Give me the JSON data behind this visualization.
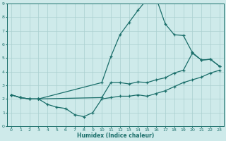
{
  "xlabel": "Humidex (Indice chaleur)",
  "xlim": [
    -0.5,
    23.5
  ],
  "ylim": [
    0,
    9
  ],
  "xticks": [
    0,
    1,
    2,
    3,
    4,
    5,
    6,
    7,
    8,
    9,
    10,
    11,
    12,
    13,
    14,
    15,
    16,
    17,
    18,
    19,
    20,
    21,
    22,
    23
  ],
  "yticks": [
    0,
    1,
    2,
    3,
    4,
    5,
    6,
    7,
    8,
    9
  ],
  "bg_color": "#ceeaea",
  "line_color": "#1a6e6a",
  "grid_color": "#aacfcf",
  "curve1_x": [
    0,
    1,
    2,
    3,
    4,
    5,
    6,
    7,
    8,
    9,
    10,
    11,
    12,
    13,
    14,
    15,
    16,
    17,
    18,
    19,
    20,
    21,
    22,
    23
  ],
  "curve1_y": [
    2.3,
    2.1,
    2.0,
    2.0,
    1.6,
    1.4,
    1.3,
    0.85,
    0.7,
    1.0,
    2.0,
    2.1,
    2.2,
    2.2,
    2.3,
    2.2,
    2.4,
    2.6,
    2.9,
    3.2,
    3.4,
    3.6,
    3.9,
    4.1
  ],
  "curve2_x": [
    0,
    1,
    2,
    3,
    10,
    11,
    12,
    13,
    14,
    15,
    16,
    17,
    18,
    19,
    20,
    21,
    22,
    23
  ],
  "curve2_y": [
    2.3,
    2.1,
    2.0,
    2.0,
    3.2,
    5.1,
    6.7,
    7.6,
    8.5,
    9.3,
    9.4,
    7.5,
    6.7,
    6.65,
    5.4,
    4.85,
    4.9,
    4.4
  ],
  "curve3_x": [
    0,
    1,
    2,
    3,
    10,
    11,
    12,
    13,
    14,
    15,
    16,
    17,
    18,
    19,
    20,
    21,
    22,
    23
  ],
  "curve3_y": [
    2.3,
    2.1,
    2.0,
    2.0,
    2.1,
    3.2,
    3.2,
    3.1,
    3.25,
    3.2,
    3.4,
    3.55,
    3.9,
    4.1,
    5.35,
    4.85,
    4.9,
    4.4
  ]
}
